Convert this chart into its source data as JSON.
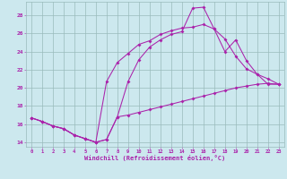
{
  "series": [
    {
      "x": [
        0,
        1,
        2,
        3,
        4,
        5,
        6,
        7,
        8,
        9,
        10,
        11,
        12,
        13,
        14,
        15,
        16,
        17,
        18,
        19,
        20,
        21,
        22,
        23
      ],
      "y": [
        16.7,
        16.3,
        15.8,
        15.5,
        14.8,
        14.4,
        14.0,
        14.3,
        16.8,
        20.7,
        23.1,
        24.5,
        25.3,
        25.9,
        26.2,
        28.8,
        28.9,
        26.5,
        25.4,
        23.5,
        22.1,
        21.5,
        20.4,
        20.4
      ]
    },
    {
      "x": [
        0,
        1,
        2,
        3,
        4,
        5,
        6,
        7,
        8,
        9,
        10,
        11,
        12,
        13,
        14,
        15,
        16,
        17,
        18,
        19,
        20,
        21,
        22,
        23
      ],
      "y": [
        16.7,
        16.3,
        15.8,
        15.5,
        14.8,
        14.4,
        14.0,
        20.7,
        22.8,
        23.8,
        24.8,
        25.2,
        25.9,
        26.3,
        26.6,
        26.7,
        27.0,
        26.5,
        24.0,
        25.3,
        23.0,
        21.5,
        21.0,
        20.4
      ]
    },
    {
      "x": [
        0,
        1,
        2,
        3,
        4,
        5,
        6,
        7,
        8,
        9,
        10,
        11,
        12,
        13,
        14,
        15,
        16,
        17,
        18,
        19,
        20,
        21,
        22,
        23
      ],
      "y": [
        16.7,
        16.3,
        15.8,
        15.5,
        14.8,
        14.4,
        14.0,
        14.3,
        16.8,
        17.0,
        17.3,
        17.6,
        17.9,
        18.2,
        18.5,
        18.8,
        19.1,
        19.4,
        19.7,
        20.0,
        20.2,
        20.4,
        20.5,
        20.4
      ]
    }
  ],
  "line_color": "#aa22aa",
  "bg_color": "#cce8ee",
  "grid_color": "#99bbbb",
  "xlabel": "Windchill (Refroidissement éolien,°C)",
  "xlim": [
    -0.5,
    23.5
  ],
  "ylim": [
    13.5,
    29.5
  ],
  "yticks": [
    14,
    16,
    18,
    20,
    22,
    24,
    26,
    28
  ],
  "xticks": [
    0,
    1,
    2,
    3,
    4,
    5,
    6,
    7,
    8,
    9,
    10,
    11,
    12,
    13,
    14,
    15,
    16,
    17,
    18,
    19,
    20,
    21,
    22,
    23
  ],
  "figsize": [
    3.2,
    2.0
  ],
  "dpi": 100
}
